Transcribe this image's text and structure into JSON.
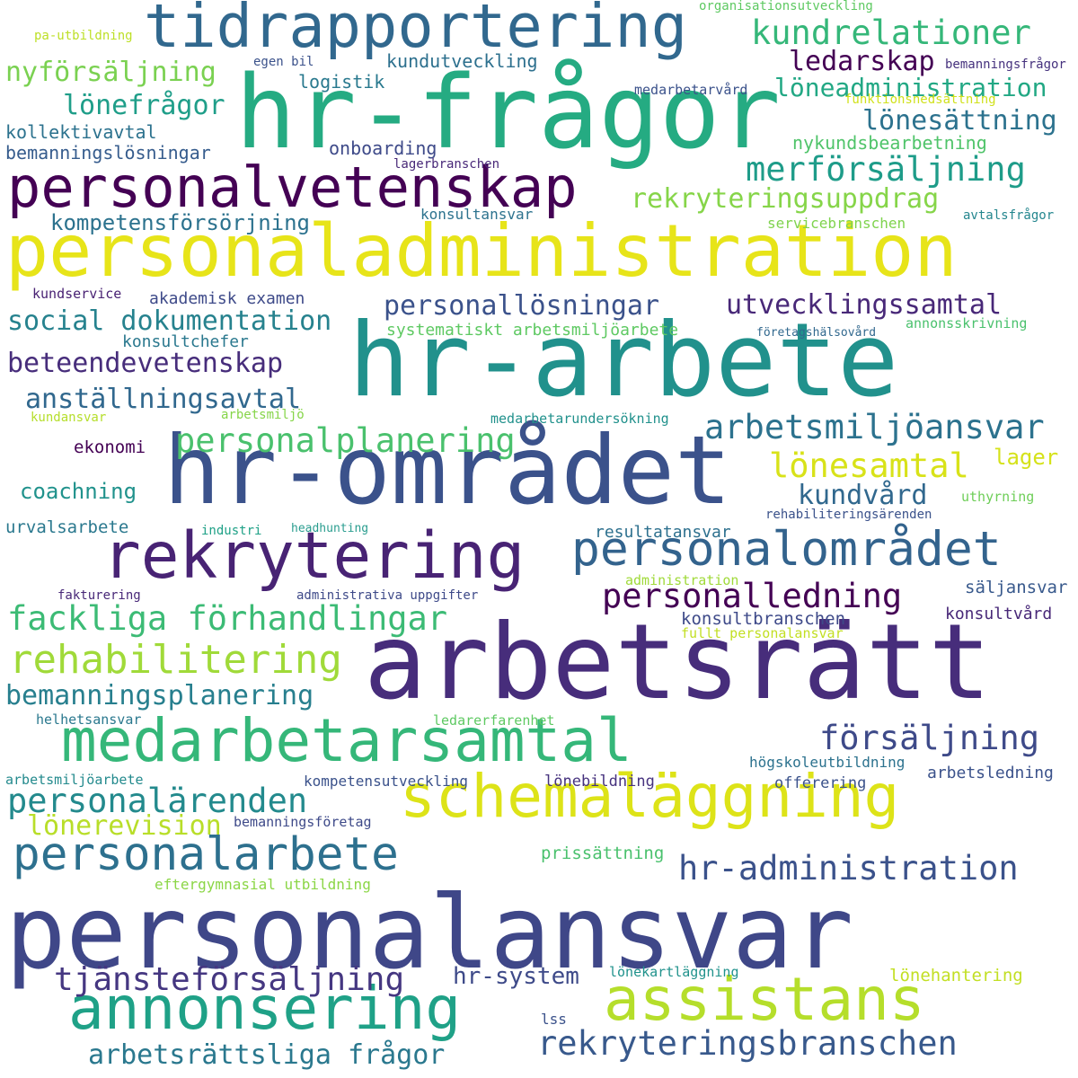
{
  "words": [
    {
      "text": "personalansvar",
      "color": "#3f4788"
    },
    {
      "text": "arbetsrätt",
      "color": "#472d7b"
    },
    {
      "text": "hr-området",
      "color": "#3b528b"
    },
    {
      "text": "hr-arbete",
      "color": "#21918c"
    },
    {
      "text": "hr-frågor",
      "color": "#25ab82"
    },
    {
      "text": "personaladministration",
      "color": "#e7e419"
    },
    {
      "text": "tidrapportering",
      "color": "#31688e"
    },
    {
      "text": "personalvetenskap",
      "color": "#440154"
    },
    {
      "text": "rekrytering",
      "color": "#482374"
    },
    {
      "text": "medarbetarsamtal",
      "color": "#35b779"
    },
    {
      "text": "schemaläggning",
      "color": "#dde318"
    },
    {
      "text": "annonsering",
      "color": "#1fa187"
    },
    {
      "text": "assistans",
      "color": "#b5de2b"
    },
    {
      "text": "personalområdet",
      "color": "#33638d"
    },
    {
      "text": "personalarbete",
      "color": "#2d708e"
    },
    {
      "text": "rekryteringsbranschen",
      "color": "#38598c"
    },
    {
      "text": "fackliga förhandlingar",
      "color": "#3cbb75"
    },
    {
      "text": "rehabilitering",
      "color": "#a0da39"
    },
    {
      "text": "personalledning",
      "color": "#440154"
    },
    {
      "text": "merförsäljning",
      "color": "#1e9c89"
    },
    {
      "text": "kundrelationer",
      "color": "#35b779"
    },
    {
      "text": "hr-administration",
      "color": "#3b528b"
    },
    {
      "text": "personalärenden",
      "color": "#238a8d"
    },
    {
      "text": "försäljning",
      "color": "#3e4a89"
    },
    {
      "text": "personalplanering",
      "color": "#4ac16d"
    },
    {
      "text": "arbetsmiljöansvar",
      "color": "#2c728e"
    },
    {
      "text": "tjänsteförsäljning",
      "color": "#453781"
    },
    {
      "text": "arbetsrättsliga frågor",
      "color": "#2a788e"
    },
    {
      "text": "utvecklingssamtal",
      "color": "#482878"
    },
    {
      "text": "lönesamtal",
      "color": "#d8e219"
    },
    {
      "text": "rekryteringsuppdrag",
      "color": "#86d549"
    },
    {
      "text": "beteendevetenskap",
      "color": "#472d7b"
    },
    {
      "text": "anställningsavtal",
      "color": "#31688e"
    },
    {
      "text": "social dokumentation",
      "color": "#26828e"
    },
    {
      "text": "personallösningar",
      "color": "#3b528b"
    },
    {
      "text": "bemanningsplanering",
      "color": "#277f8e"
    },
    {
      "text": "lönerevision",
      "color": "#b8de29"
    },
    {
      "text": "nyförsäljning",
      "color": "#7ad151"
    },
    {
      "text": "lönefrågor",
      "color": "#1f9e89"
    },
    {
      "text": "ledarskap",
      "color": "#440154"
    },
    {
      "text": "löneadministration",
      "color": "#22a884"
    },
    {
      "text": "lönesättning",
      "color": "#2c728e"
    },
    {
      "text": "kundvård",
      "color": "#31688e"
    },
    {
      "text": "kompetensförsörjning",
      "color": "#2c728e"
    },
    {
      "text": "hr-system",
      "color": "#3e4a89"
    },
    {
      "text": "coachning",
      "color": "#20928c"
    },
    {
      "text": "lager",
      "color": "#d5e21a"
    },
    {
      "text": "pa-utbildning",
      "color": "#bddf26"
    },
    {
      "text": "organisationsutveckling",
      "color": "#5ec962"
    },
    {
      "text": "egen bil",
      "color": "#3b528b"
    },
    {
      "text": "kundutveckling",
      "color": "#2d708e"
    },
    {
      "text": "bemanningsfrågor",
      "color": "#46327e"
    },
    {
      "text": "logistik",
      "color": "#29798e"
    },
    {
      "text": "medarbetarvård",
      "color": "#3b528b"
    },
    {
      "text": "funktionsnedsättning",
      "color": "#d0e11c"
    },
    {
      "text": "kollektivavtal",
      "color": "#2c728e"
    },
    {
      "text": "bemanningslösningar",
      "color": "#365c8d"
    },
    {
      "text": "onboarding",
      "color": "#3e4a89"
    },
    {
      "text": "nykundsbearbetning",
      "color": "#50c46a"
    },
    {
      "text": "lagerbranschen",
      "color": "#482878"
    },
    {
      "text": "konsultansvar",
      "color": "#2c728e"
    },
    {
      "text": "servicebranschen",
      "color": "#7fd34e"
    },
    {
      "text": "avtalsfrågor",
      "color": "#24868e"
    },
    {
      "text": "kundservice",
      "color": "#482173"
    },
    {
      "text": "akademisk examen",
      "color": "#3e4a89"
    },
    {
      "text": "konsultchefer",
      "color": "#2a788e"
    },
    {
      "text": "systematiskt arbetsmiljöarbete",
      "color": "#5ec962"
    },
    {
      "text": "företagshälsovård",
      "color": "#31688e"
    },
    {
      "text": "annonsskrivning",
      "color": "#4ac16d"
    },
    {
      "text": "kundansvar",
      "color": "#b5de2b"
    },
    {
      "text": "arbetsmiljö",
      "color": "#86d549"
    },
    {
      "text": "medarbetarundersökning",
      "color": "#21918c"
    },
    {
      "text": "ekonomi",
      "color": "#440154"
    },
    {
      "text": "uthyrning",
      "color": "#6ece58"
    },
    {
      "text": "rehabiliteringsärenden",
      "color": "#3b528b"
    },
    {
      "text": "urvalsarbete",
      "color": "#2a788e"
    },
    {
      "text": "industri",
      "color": "#1fa187"
    },
    {
      "text": "headhunting",
      "color": "#2a9d8f"
    },
    {
      "text": "resultatansvar",
      "color": "#2d708e"
    },
    {
      "text": "administration",
      "color": "#a0da39"
    },
    {
      "text": "fakturering",
      "color": "#482878"
    },
    {
      "text": "administrativa uppgifter",
      "color": "#3e4a89"
    },
    {
      "text": "säljansvar",
      "color": "#38598c"
    },
    {
      "text": "konsultbranschen",
      "color": "#3e4a89"
    },
    {
      "text": "konsultvård",
      "color": "#482878"
    },
    {
      "text": "fullt personalansvar",
      "color": "#c2df23"
    },
    {
      "text": "helhetsansvar",
      "color": "#2a788e"
    },
    {
      "text": "ledarerfarenhet",
      "color": "#5ec962"
    },
    {
      "text": "högskoleutbildning",
      "color": "#2c728e"
    },
    {
      "text": "arbetsledning",
      "color": "#3b528b"
    },
    {
      "text": "arbetsmiljöarbete",
      "color": "#238a8d"
    },
    {
      "text": "kompetensutveckling",
      "color": "#3b528b"
    },
    {
      "text": "lönebildning",
      "color": "#46327e"
    },
    {
      "text": "offerering",
      "color": "#3b528b"
    },
    {
      "text": "bemanningsföretag",
      "color": "#3e4a89"
    },
    {
      "text": "prissättning",
      "color": "#4ac16d"
    },
    {
      "text": "eftergymnasial utbildning",
      "color": "#8bd646"
    },
    {
      "text": "lönekartläggning",
      "color": "#20928c"
    },
    {
      "text": "lönehantering",
      "color": "#c2df23"
    },
    {
      "text": "lss",
      "color": "#3b528b"
    }
  ]
}
